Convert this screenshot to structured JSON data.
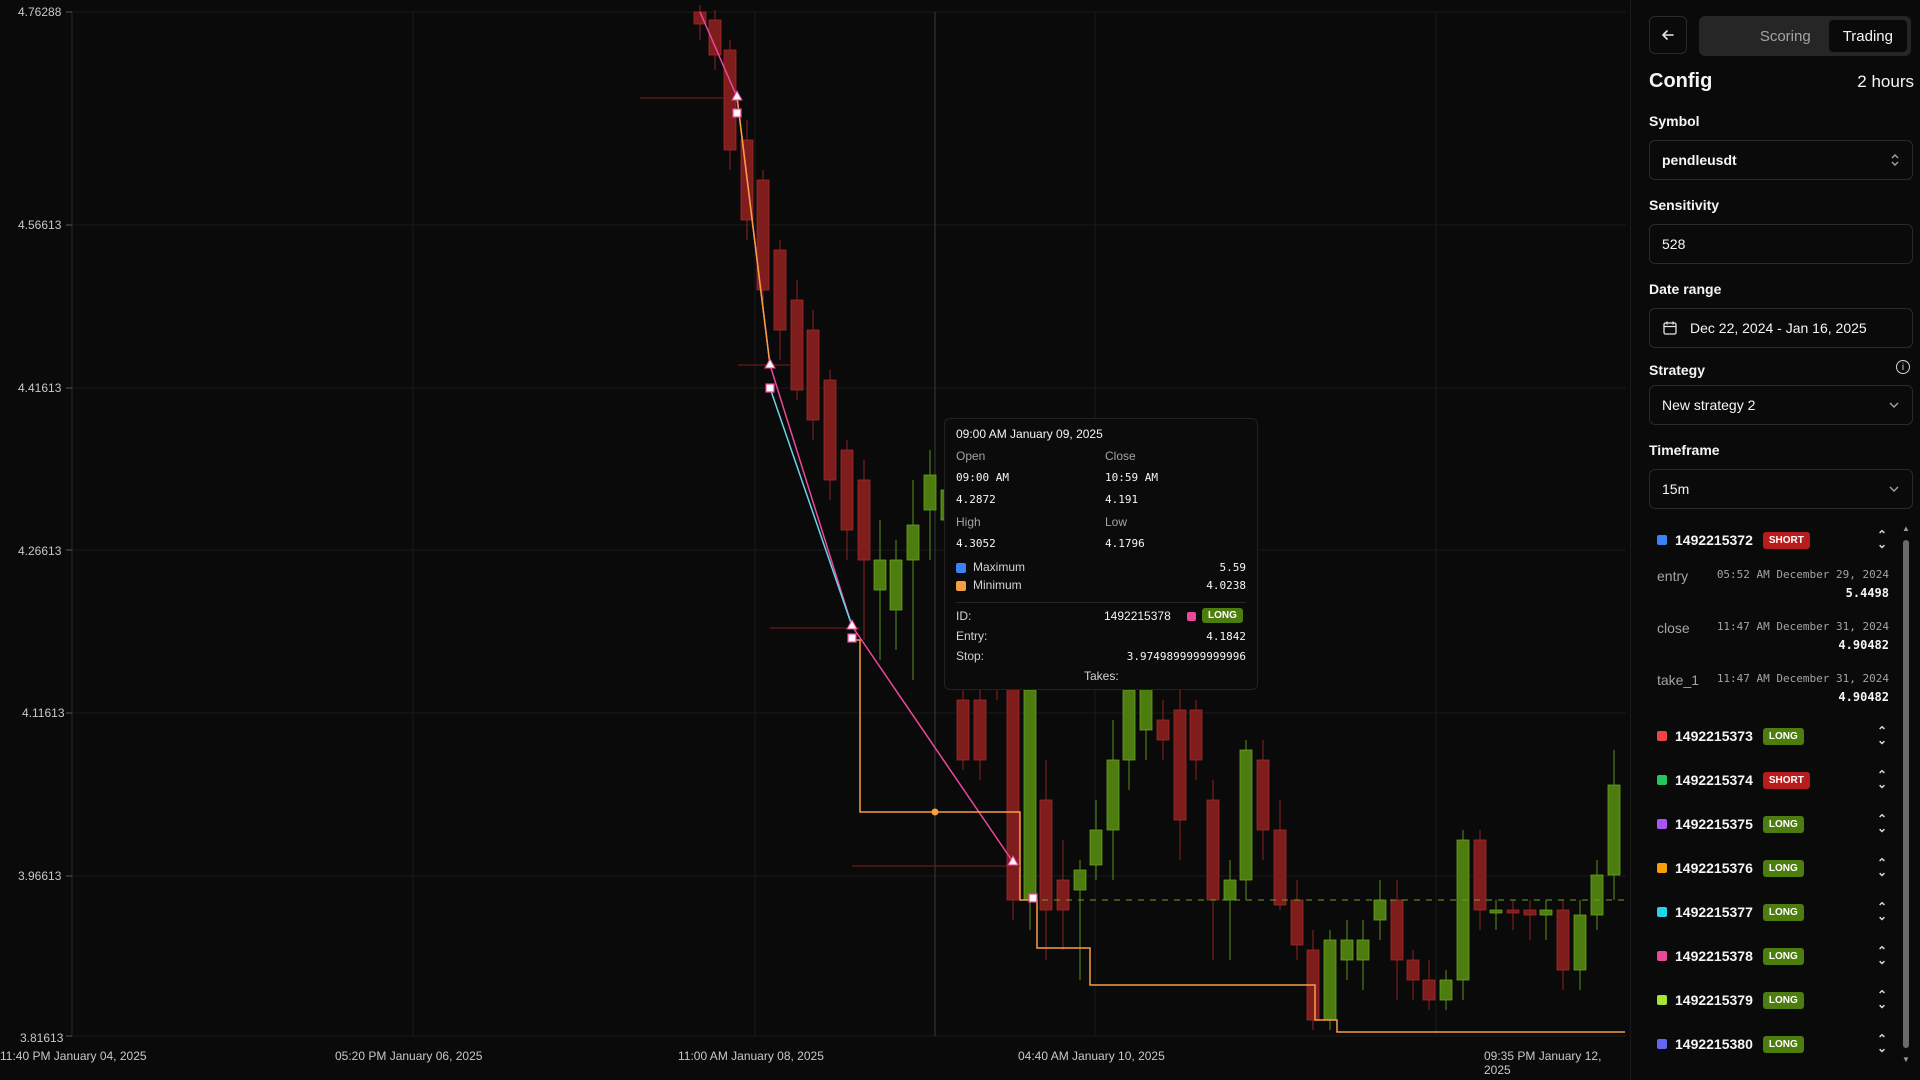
{
  "chart": {
    "y_ticks": [
      "4.76288",
      "4.56613",
      "4.41613",
      "4.26613",
      "4.11613",
      "3.96613",
      "3.81613"
    ],
    "x_ticks": [
      "11:40 PM January 04, 2025",
      "05:20 PM January 06, 2025",
      "11:00 AM January 08, 2025",
      "04:40 AM January 10, 2025",
      "09:35 PM January 12, 2025"
    ],
    "colors": {
      "up": "#4d7c0f",
      "down": "#7f1d1d",
      "long_path": "#ec4899",
      "short_path": "#67d4e8",
      "minimum": "#f59e42",
      "maximum": "#3b82f6"
    }
  },
  "tooltip": {
    "title": "09:00 AM January 09, 2025",
    "open_label": "Open",
    "close_label": "Close",
    "open_time": "09:00 AM",
    "close_time": "10:59 AM",
    "open_value": "4.2872",
    "close_value": "4.191",
    "high_label": "High",
    "low_label": "Low",
    "high_value": "4.3052",
    "low_value": "4.1796",
    "maximum_label": "Maximum",
    "maximum_value": "5.59",
    "minimum_label": "Minimum",
    "minimum_value": "4.0238",
    "id_label": "ID:",
    "id_value": "1492215378",
    "id_badge": "LONG",
    "entry_label": "Entry:",
    "entry_value": "4.1842",
    "stop_label": "Stop:",
    "stop_value": "3.9749899999999996",
    "takes_label": "Takes:"
  },
  "sidebar": {
    "back_icon": "arrow-left-icon",
    "tabs": [
      {
        "label": "Scoring"
      },
      {
        "label": "Trading"
      }
    ],
    "config_title": "Config",
    "config_duration": "2 hours",
    "symbol_label": "Symbol",
    "symbol_value": "pendleusdt",
    "sensitivity_label": "Sensitivity",
    "sensitivity_value": "528",
    "date_range_label": "Date range",
    "date_range_value": "Dec 22, 2024 - Jan 16, 2025",
    "strategy_label": "Strategy",
    "strategy_value": "New strategy 2",
    "timeframe_label": "Timeframe",
    "timeframe_value": "15m"
  },
  "trades": [
    {
      "id": "1492215372",
      "side": "SHORT",
      "color": "#3b82f6"
    },
    {
      "id": "1492215373",
      "side": "LONG",
      "color": "#ef4444"
    },
    {
      "id": "1492215374",
      "side": "SHORT",
      "color": "#22c55e"
    },
    {
      "id": "1492215375",
      "side": "LONG",
      "color": "#a855f7"
    },
    {
      "id": "1492215376",
      "side": "LONG",
      "color": "#f59e0b"
    },
    {
      "id": "1492215377",
      "side": "LONG",
      "color": "#22d3ee"
    },
    {
      "id": "1492215378",
      "side": "LONG",
      "color": "#ec4899"
    },
    {
      "id": "1492215379",
      "side": "LONG",
      "color": "#a3e635"
    },
    {
      "id": "1492215380",
      "side": "LONG",
      "color": "#6366f1"
    }
  ],
  "expanded_trade": {
    "entry_label": "entry",
    "entry_time": "05:52 AM December 29, 2024",
    "entry_value": "5.4498",
    "close_label": "close",
    "close_time": "11:47 AM December 31, 2024",
    "close_value": "4.90482",
    "take_label": "take_1",
    "take_time": "11:47 AM December 31, 2024",
    "take_value": "4.90482"
  }
}
